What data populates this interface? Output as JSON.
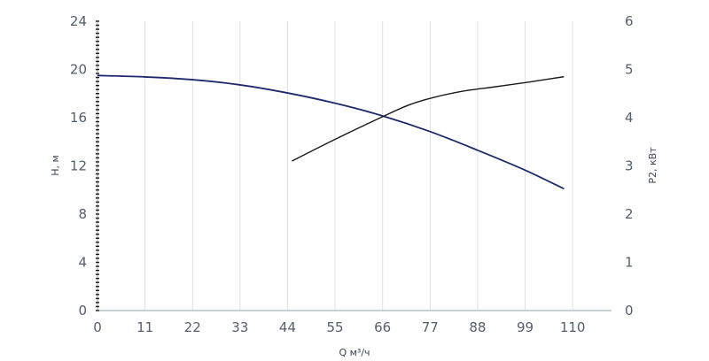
{
  "chart_data": {
    "type": "line",
    "xlabel": "Q м³/ч",
    "ylabel_left": "H, м",
    "ylabel_right": "P2, кВт",
    "x_ticks": [
      0,
      11,
      22,
      33,
      44,
      55,
      66,
      77,
      88,
      99,
      110
    ],
    "x_range": [
      0,
      119
    ],
    "y_left_ticks": [
      0,
      4,
      8,
      12,
      16,
      20,
      24
    ],
    "y_left_range": [
      0,
      24
    ],
    "y_right_ticks": [
      0,
      1,
      2,
      3,
      4,
      5,
      6
    ],
    "y_right_range": [
      0,
      6
    ],
    "grid": "vertical",
    "series": [
      {
        "axis": "left",
        "color": "#1f2a6b",
        "x": [
          0,
          11,
          22,
          33,
          44,
          55,
          66,
          77,
          88,
          99,
          108
        ],
        "y": [
          19.5,
          19.38,
          19.15,
          18.72,
          18.05,
          17.2,
          16.15,
          14.85,
          13.3,
          11.65,
          10.1
        ]
      },
      {
        "axis": "right",
        "color": "#1a1a1a",
        "x": [
          45,
          55,
          66,
          72,
          77,
          84,
          92,
          100,
          108
        ],
        "y": [
          3.1,
          3.55,
          4.02,
          4.26,
          4.4,
          4.54,
          4.64,
          4.74,
          4.85
        ]
      }
    ]
  }
}
